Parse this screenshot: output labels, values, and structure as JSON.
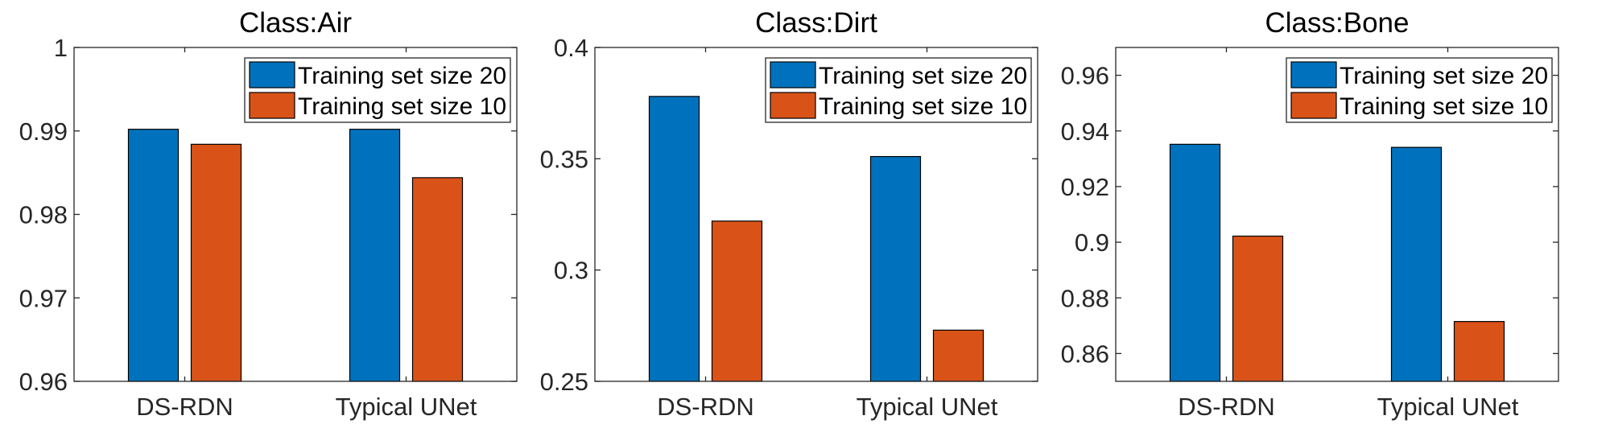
{
  "chart_data": [
    {
      "type": "bar",
      "title": "Class:Air",
      "categories": [
        "DS-RDN",
        "Typical UNet"
      ],
      "series": [
        {
          "name": "Training set size 20",
          "values": [
            0.9902,
            0.9902
          ]
        },
        {
          "name": "Training set size 10",
          "values": [
            0.9884,
            0.9844
          ]
        }
      ],
      "ylim": [
        0.96,
        1.0
      ],
      "yticks": [
        0.96,
        0.97,
        0.98,
        0.99,
        1.0
      ],
      "ytick_labels": [
        "0.96",
        "0.97",
        "0.98",
        "0.99",
        "1"
      ],
      "legend_placement": "top-right",
      "grid": false
    },
    {
      "type": "bar",
      "title": "Class:Dirt",
      "categories": [
        "DS-RDN",
        "Typical UNet"
      ],
      "series": [
        {
          "name": "Training set size 20",
          "values": [
            0.378,
            0.351
          ]
        },
        {
          "name": "Training set size 10",
          "values": [
            0.322,
            0.273
          ]
        }
      ],
      "ylim": [
        0.25,
        0.4
      ],
      "yticks": [
        0.25,
        0.3,
        0.35,
        0.4
      ],
      "ytick_labels": [
        "0.25",
        "0.3",
        "0.35",
        "0.4"
      ],
      "legend_placement": "top-right",
      "grid": false
    },
    {
      "type": "bar",
      "title": "Class:Bone",
      "categories": [
        "DS-RDN",
        "Typical UNet"
      ],
      "series": [
        {
          "name": "Training set size 20",
          "values": [
            0.9352,
            0.9341
          ]
        },
        {
          "name": "Training set size 10",
          "values": [
            0.9022,
            0.8715
          ]
        }
      ],
      "ylim": [
        0.85,
        0.97
      ],
      "yticks": [
        0.86,
        0.88,
        0.9,
        0.92,
        0.94,
        0.96
      ],
      "ytick_labels": [
        "0.86",
        "0.88",
        "0.9",
        "0.92",
        "0.94",
        "0.96"
      ],
      "legend_placement": "top-right",
      "grid": false
    }
  ],
  "colors": {
    "series_1": "#0072BD",
    "series_2": "#D95319"
  }
}
